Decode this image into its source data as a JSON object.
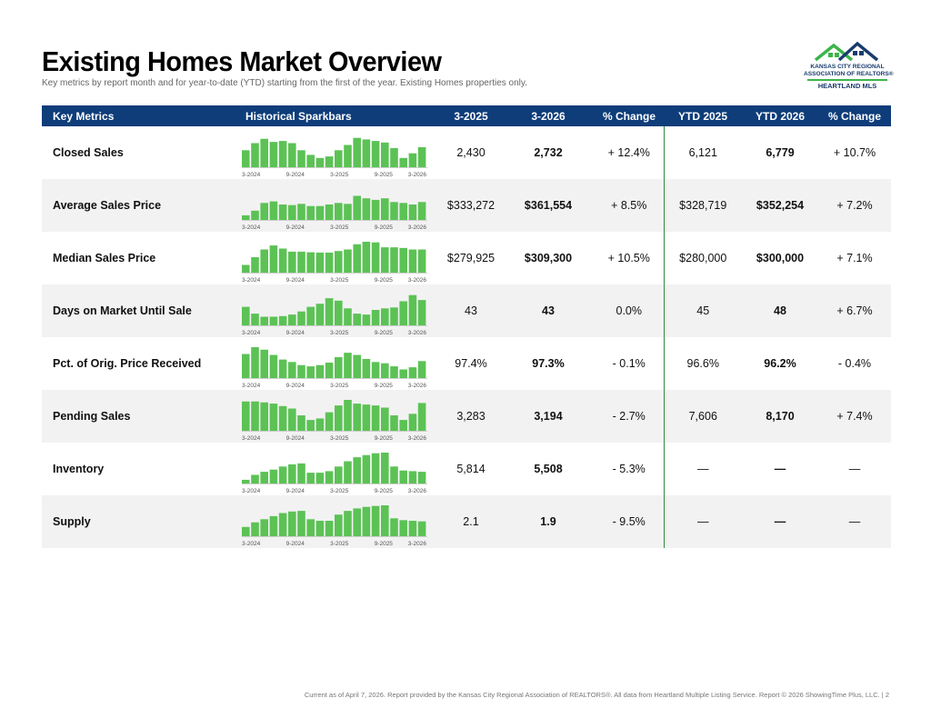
{
  "header": {
    "title": "Existing Homes Market Overview",
    "subtitle": "Key metrics by report month and for year-to-date (YTD) starting from the first of the year. Existing Homes properties only."
  },
  "logo": {
    "line1": "KANSAS CITY REGIONAL",
    "line2": "ASSOCIATION OF REALTORS®",
    "line3": "HEARTLAND MLS"
  },
  "columns": [
    "Key Metrics",
    "Historical Sparkbars",
    "3-2025",
    "3-2026",
    "% Change",
    "YTD 2025",
    "YTD 2026",
    "% Change"
  ],
  "spark_ticks": [
    "3-2024",
    "9-2024",
    "3-2025",
    "9-2025",
    "3-2026"
  ],
  "colors": {
    "header_bg": "#0e3d7a",
    "spark_bar": "#5cc255",
    "divider": "#2e8b3e"
  },
  "rows": [
    {
      "name": "Closed Sales",
      "m2025": "2,430",
      "m2026": "2,732",
      "mchg": "+ 12.4%",
      "y2025": "6,121",
      "y2026": "6,779",
      "ychg": "+ 10.7%",
      "spark": [
        0.55,
        0.78,
        0.92,
        0.82,
        0.85,
        0.78,
        0.55,
        0.4,
        0.3,
        0.35,
        0.55,
        0.72,
        0.95,
        0.9,
        0.85,
        0.8,
        0.62,
        0.3,
        0.45,
        0.65
      ]
    },
    {
      "name": "Average Sales Price",
      "m2025": "$333,272",
      "m2026": "$361,554",
      "mchg": "+ 8.5%",
      "y2025": "$328,719",
      "y2026": "$352,254",
      "ychg": "+ 7.2%",
      "spark": [
        0.15,
        0.3,
        0.55,
        0.6,
        0.5,
        0.48,
        0.52,
        0.45,
        0.45,
        0.5,
        0.55,
        0.52,
        0.78,
        0.7,
        0.65,
        0.7,
        0.58,
        0.55,
        0.5,
        0.58
      ]
    },
    {
      "name": "Median Sales Price",
      "m2025": "$279,925",
      "m2026": "$309,300",
      "mchg": "+ 10.5%",
      "y2025": "$280,000",
      "y2026": "$300,000",
      "ychg": "+ 7.1%",
      "spark": [
        0.25,
        0.5,
        0.75,
        0.88,
        0.78,
        0.68,
        0.68,
        0.66,
        0.65,
        0.65,
        0.7,
        0.75,
        0.92,
        1.0,
        0.98,
        0.82,
        0.82,
        0.8,
        0.75,
        0.75
      ]
    },
    {
      "name": "Days on Market Until Sale",
      "m2025": "43",
      "m2026": "43",
      "mchg": "0.0%",
      "y2025": "45",
      "y2026": "48",
      "ychg": "+ 6.7%",
      "spark": [
        0.6,
        0.38,
        0.28,
        0.28,
        0.3,
        0.35,
        0.45,
        0.6,
        0.7,
        0.88,
        0.8,
        0.55,
        0.38,
        0.35,
        0.5,
        0.55,
        0.58,
        0.78,
        0.98,
        0.82
      ]
    },
    {
      "name": "Pct. of Orig. Price Received",
      "m2025": "97.4%",
      "m2026": "97.3%",
      "mchg": "- 0.1%",
      "y2025": "96.6%",
      "y2026": "96.2%",
      "ychg": "- 0.4%",
      "spark": [
        0.78,
        1.0,
        0.92,
        0.75,
        0.6,
        0.52,
        0.42,
        0.38,
        0.42,
        0.5,
        0.68,
        0.82,
        0.75,
        0.62,
        0.52,
        0.48,
        0.38,
        0.28,
        0.35,
        0.55
      ]
    },
    {
      "name": "Pending Sales",
      "m2025": "3,283",
      "m2026": "3,194",
      "mchg": "- 2.7%",
      "y2025": "7,606",
      "y2026": "8,170",
      "ychg": "+ 7.4%",
      "spark": [
        0.95,
        0.95,
        0.92,
        0.88,
        0.8,
        0.72,
        0.5,
        0.35,
        0.4,
        0.6,
        0.82,
        1.0,
        0.88,
        0.85,
        0.82,
        0.75,
        0.5,
        0.35,
        0.55,
        0.9
      ]
    },
    {
      "name": "Inventory",
      "m2025": "5,814",
      "m2026": "5,508",
      "mchg": "- 5.3%",
      "y2025": "—",
      "y2026": "—",
      "ychg": "—",
      "spark": [
        0.12,
        0.28,
        0.38,
        0.45,
        0.55,
        0.62,
        0.65,
        0.35,
        0.35,
        0.4,
        0.55,
        0.72,
        0.85,
        0.92,
        0.98,
        1.0,
        0.55,
        0.42,
        0.4,
        0.38
      ]
    },
    {
      "name": "Supply",
      "m2025": "2.1",
      "m2026": "1.9",
      "mchg": "- 9.5%",
      "y2025": "—",
      "y2026": "—",
      "ychg": "—",
      "spark": [
        0.3,
        0.45,
        0.55,
        0.65,
        0.75,
        0.8,
        0.82,
        0.55,
        0.5,
        0.5,
        0.7,
        0.82,
        0.9,
        0.95,
        0.98,
        1.0,
        0.58,
        0.52,
        0.5,
        0.48
      ]
    }
  ],
  "footer": "Current as of April 7, 2026. Report provided by the Kansas City Regional Association of REALTORS®. All data from Heartland Multiple Listing Service. Report © 2026 ShowingTime Plus, LLC. | 2"
}
